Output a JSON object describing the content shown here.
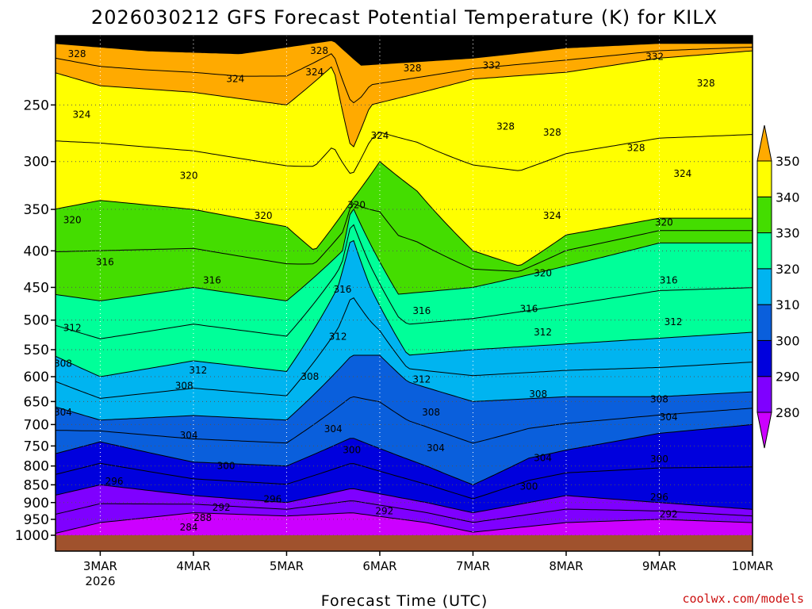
{
  "chart_data": {
    "type": "heatmap",
    "title": "2026030212 GFS Forecast Potential Temperature (K) for KILX",
    "xlabel": "Forecast Time (UTC)",
    "ylabel": "",
    "x_ticks": [
      "3MAR",
      "4MAR",
      "5MAR",
      "6MAR",
      "7MAR",
      "8MAR",
      "9MAR",
      "10MAR"
    ],
    "x_tick_sublabel": "2026",
    "x_range_days": [
      2.52,
      10.0
    ],
    "y_ticks": [
      250,
      300,
      350,
      400,
      450,
      500,
      550,
      600,
      650,
      700,
      750,
      800,
      850,
      900,
      950,
      1000
    ],
    "y_range_hpa": [
      200,
      1000
    ],
    "y_scale": "log",
    "grid": true,
    "colorbar": {
      "levels": [
        280,
        290,
        300,
        310,
        320,
        330,
        340,
        350
      ],
      "colors": [
        "#cc00ff",
        "#7f00ff",
        "#0000dd",
        "#0a5fdc",
        "#00b4f0",
        "#00ff99",
        "#44dd00",
        "#ffff00",
        "#ffaa00"
      ],
      "extend": "both"
    },
    "contour_interval_K": 2,
    "series": [
      {
        "values": [
          [
            2.5,
            995
          ],
          [
            3.0,
            960
          ],
          [
            4.0,
            930
          ],
          [
            5.0,
            940
          ],
          [
            5.7,
            930
          ],
          [
            6.5,
            960
          ],
          [
            7.0,
            990
          ],
          [
            8.0,
            960
          ],
          [
            9.0,
            950
          ],
          [
            10.0,
            960
          ]
        ]
      },
      {
        "values": [
          [
            2.5,
            880
          ],
          [
            3.0,
            850
          ],
          [
            4.0,
            880
          ],
          [
            5.0,
            900
          ],
          [
            5.7,
            860
          ],
          [
            6.5,
            900
          ],
          [
            7.0,
            930
          ],
          [
            8.0,
            880
          ],
          [
            9.0,
            900
          ],
          [
            10.0,
            920
          ]
        ]
      },
      {
        "values": [
          [
            2.5,
            770
          ],
          [
            3.0,
            740
          ],
          [
            4.0,
            790
          ],
          [
            5.0,
            800
          ],
          [
            5.7,
            730
          ],
          [
            6.5,
            800
          ],
          [
            7.0,
            850
          ],
          [
            7.6,
            780
          ],
          [
            8.0,
            760
          ],
          [
            9.0,
            720
          ],
          [
            10.0,
            700
          ]
        ]
      },
      {
        "values": [
          [
            2.5,
            660
          ],
          [
            3.0,
            690
          ],
          [
            4.0,
            680
          ],
          [
            5.0,
            690
          ],
          [
            5.7,
            560
          ],
          [
            6.0,
            560
          ],
          [
            6.3,
            610
          ],
          [
            7.0,
            650
          ],
          [
            8.0,
            640
          ],
          [
            9.0,
            640
          ],
          [
            10.0,
            630
          ]
        ]
      },
      {
        "values": [
          [
            2.5,
            560
          ],
          [
            3.0,
            600
          ],
          [
            4.0,
            570
          ],
          [
            5.0,
            590
          ],
          [
            5.55,
            450
          ],
          [
            5.7,
            380
          ],
          [
            5.9,
            450
          ],
          [
            6.3,
            560
          ],
          [
            7.0,
            550
          ],
          [
            8.0,
            540
          ],
          [
            9.0,
            530
          ],
          [
            10.0,
            520
          ]
        ]
      },
      {
        "values": [
          [
            2.5,
            460
          ],
          [
            3.0,
            470
          ],
          [
            4.0,
            450
          ],
          [
            5.0,
            470
          ],
          [
            5.6,
            400
          ],
          [
            5.7,
            345
          ],
          [
            5.85,
            380
          ],
          [
            6.2,
            460
          ],
          [
            7.0,
            450
          ],
          [
            8.0,
            420
          ],
          [
            9.0,
            390
          ],
          [
            10.0,
            390
          ]
        ]
      },
      {
        "values": [
          [
            2.5,
            350
          ],
          [
            3.0,
            340
          ],
          [
            4.0,
            350
          ],
          [
            5.0,
            370
          ],
          [
            5.3,
            400
          ],
          [
            5.7,
            340
          ],
          [
            6.0,
            300
          ],
          [
            6.4,
            330
          ],
          [
            7.0,
            400
          ],
          [
            7.5,
            420
          ],
          [
            8.0,
            380
          ],
          [
            9.0,
            360
          ],
          [
            10.0,
            360
          ]
        ]
      },
      {
        "values": [
          [
            2.5,
            225
          ],
          [
            3.0,
            235
          ],
          [
            4.0,
            240
          ],
          [
            5.0,
            250
          ],
          [
            5.5,
            220
          ],
          [
            5.7,
            290
          ],
          [
            5.9,
            250
          ],
          [
            7.0,
            230
          ],
          [
            8.0,
            225
          ],
          [
            9.0,
            215
          ],
          [
            10.0,
            210
          ]
        ]
      },
      {
        "values": [
          [
            2.5,
            205
          ],
          [
            3.5,
            210
          ],
          [
            4.5,
            212
          ],
          [
            5.5,
            203
          ],
          [
            5.8,
            220
          ],
          [
            7.0,
            215
          ],
          [
            8.0,
            208
          ],
          [
            9.0,
            205
          ],
          [
            10.0,
            205
          ]
        ]
      }
    ],
    "contour_labels": [
      {
        "text": "328",
        "x": 2.75,
        "y": 212
      },
      {
        "text": "328",
        "x": 5.35,
        "y": 210
      },
      {
        "text": "324",
        "x": 5.3,
        "y": 225
      },
      {
        "text": "328",
        "x": 6.35,
        "y": 222
      },
      {
        "text": "332",
        "x": 7.2,
        "y": 220
      },
      {
        "text": "332",
        "x": 8.95,
        "y": 214
      },
      {
        "text": "324",
        "x": 4.45,
        "y": 230
      },
      {
        "text": "328",
        "x": 9.5,
        "y": 233
      },
      {
        "text": "324",
        "x": 2.8,
        "y": 258
      },
      {
        "text": "324",
        "x": 6.0,
        "y": 276
      },
      {
        "text": "328",
        "x": 7.35,
        "y": 268
      },
      {
        "text": "328",
        "x": 7.85,
        "y": 273
      },
      {
        "text": "328",
        "x": 8.75,
        "y": 287
      },
      {
        "text": "320",
        "x": 3.95,
        "y": 314
      },
      {
        "text": "324",
        "x": 9.25,
        "y": 312
      },
      {
        "text": "320",
        "x": 5.75,
        "y": 345
      },
      {
        "text": "320",
        "x": 2.7,
        "y": 362
      },
      {
        "text": "320",
        "x": 4.75,
        "y": 357
      },
      {
        "text": "324",
        "x": 7.85,
        "y": 357
      },
      {
        "text": "320",
        "x": 9.05,
        "y": 365
      },
      {
        "text": "316",
        "x": 3.05,
        "y": 415
      },
      {
        "text": "316",
        "x": 4.2,
        "y": 440
      },
      {
        "text": "316",
        "x": 5.6,
        "y": 453
      },
      {
        "text": "320",
        "x": 7.75,
        "y": 430
      },
      {
        "text": "316",
        "x": 9.1,
        "y": 440
      },
      {
        "text": "316",
        "x": 6.45,
        "y": 485
      },
      {
        "text": "316",
        "x": 7.6,
        "y": 482
      },
      {
        "text": "312",
        "x": 2.7,
        "y": 513
      },
      {
        "text": "312",
        "x": 5.55,
        "y": 527
      },
      {
        "text": "312",
        "x": 7.75,
        "y": 520
      },
      {
        "text": "312",
        "x": 9.15,
        "y": 503
      },
      {
        "text": "308",
        "x": 2.6,
        "y": 575
      },
      {
        "text": "312",
        "x": 4.05,
        "y": 588
      },
      {
        "text": "308",
        "x": 3.9,
        "y": 618
      },
      {
        "text": "308",
        "x": 5.25,
        "y": 600
      },
      {
        "text": "312",
        "x": 6.45,
        "y": 605
      },
      {
        "text": "308",
        "x": 7.7,
        "y": 635
      },
      {
        "text": "308",
        "x": 9.0,
        "y": 645
      },
      {
        "text": "304",
        "x": 2.6,
        "y": 673
      },
      {
        "text": "308",
        "x": 6.55,
        "y": 673
      },
      {
        "text": "304",
        "x": 9.1,
        "y": 683
      },
      {
        "text": "304",
        "x": 5.5,
        "y": 710
      },
      {
        "text": "304",
        "x": 3.95,
        "y": 725
      },
      {
        "text": "304",
        "x": 6.6,
        "y": 755
      },
      {
        "text": "300",
        "x": 5.7,
        "y": 760
      },
      {
        "text": "304",
        "x": 7.75,
        "y": 780
      },
      {
        "text": "300",
        "x": 4.35,
        "y": 800
      },
      {
        "text": "300",
        "x": 9.0,
        "y": 783
      },
      {
        "text": "296",
        "x": 3.15,
        "y": 840
      },
      {
        "text": "300",
        "x": 7.6,
        "y": 855
      },
      {
        "text": "296",
        "x": 4.85,
        "y": 890
      },
      {
        "text": "296",
        "x": 9.0,
        "y": 885
      },
      {
        "text": "292",
        "x": 4.3,
        "y": 915
      },
      {
        "text": "292",
        "x": 6.05,
        "y": 925
      },
      {
        "text": "292",
        "x": 9.1,
        "y": 935
      },
      {
        "text": "288",
        "x": 4.1,
        "y": 945
      },
      {
        "text": "284",
        "x": 3.95,
        "y": 975
      }
    ]
  },
  "credit": "coolwx.com/models"
}
